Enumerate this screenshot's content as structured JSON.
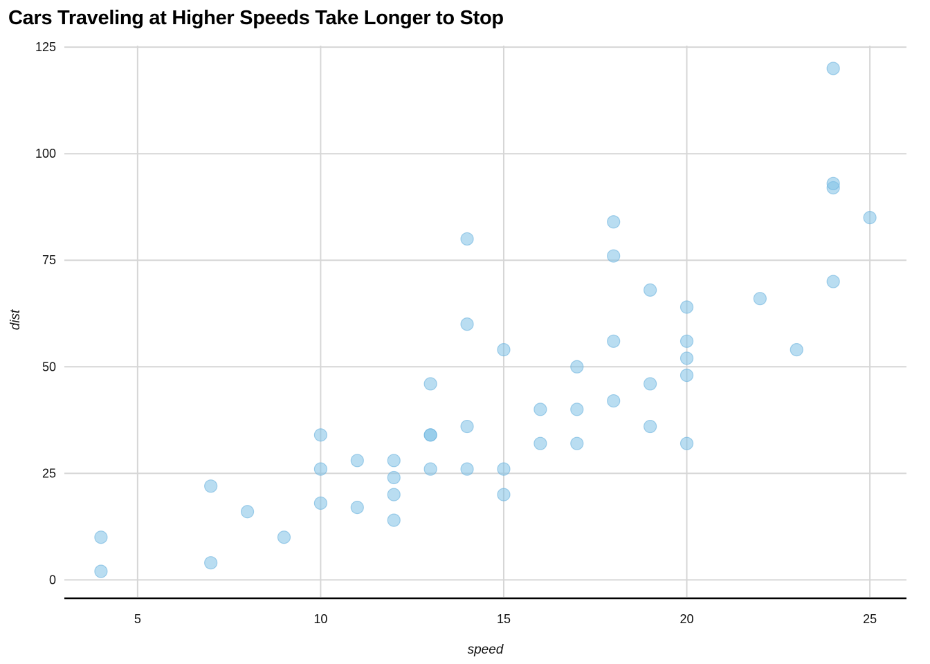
{
  "chart_data": {
    "type": "scatter",
    "title": "Cars Traveling at Higher Speeds Take Longer to Stop",
    "xlabel": "speed",
    "ylabel": "dist",
    "xlim": [
      3,
      26
    ],
    "ylim": [
      -4,
      126
    ],
    "x_ticks": [
      5,
      10,
      15,
      20,
      25
    ],
    "y_ticks": [
      0,
      25,
      50,
      75,
      100,
      125
    ],
    "grid": true,
    "point_color": "#7fc1e6",
    "points": [
      {
        "x": 4,
        "y": 2
      },
      {
        "x": 4,
        "y": 10
      },
      {
        "x": 7,
        "y": 4
      },
      {
        "x": 7,
        "y": 22
      },
      {
        "x": 8,
        "y": 16
      },
      {
        "x": 9,
        "y": 10
      },
      {
        "x": 10,
        "y": 18
      },
      {
        "x": 10,
        "y": 26
      },
      {
        "x": 10,
        "y": 34
      },
      {
        "x": 11,
        "y": 17
      },
      {
        "x": 11,
        "y": 28
      },
      {
        "x": 12,
        "y": 14
      },
      {
        "x": 12,
        "y": 20
      },
      {
        "x": 12,
        "y": 24
      },
      {
        "x": 12,
        "y": 28
      },
      {
        "x": 13,
        "y": 26
      },
      {
        "x": 13,
        "y": 34
      },
      {
        "x": 13,
        "y": 34
      },
      {
        "x": 13,
        "y": 46
      },
      {
        "x": 14,
        "y": 26
      },
      {
        "x": 14,
        "y": 36
      },
      {
        "x": 14,
        "y": 60
      },
      {
        "x": 14,
        "y": 80
      },
      {
        "x": 15,
        "y": 20
      },
      {
        "x": 15,
        "y": 26
      },
      {
        "x": 15,
        "y": 54
      },
      {
        "x": 16,
        "y": 32
      },
      {
        "x": 16,
        "y": 40
      },
      {
        "x": 17,
        "y": 32
      },
      {
        "x": 17,
        "y": 40
      },
      {
        "x": 17,
        "y": 50
      },
      {
        "x": 18,
        "y": 42
      },
      {
        "x": 18,
        "y": 56
      },
      {
        "x": 18,
        "y": 76
      },
      {
        "x": 18,
        "y": 84
      },
      {
        "x": 19,
        "y": 36
      },
      {
        "x": 19,
        "y": 46
      },
      {
        "x": 19,
        "y": 68
      },
      {
        "x": 20,
        "y": 32
      },
      {
        "x": 20,
        "y": 48
      },
      {
        "x": 20,
        "y": 52
      },
      {
        "x": 20,
        "y": 56
      },
      {
        "x": 20,
        "y": 64
      },
      {
        "x": 22,
        "y": 66
      },
      {
        "x": 23,
        "y": 54
      },
      {
        "x": 24,
        "y": 70
      },
      {
        "x": 24,
        "y": 92
      },
      {
        "x": 24,
        "y": 93
      },
      {
        "x": 24,
        "y": 120
      },
      {
        "x": 25,
        "y": 85
      }
    ]
  }
}
